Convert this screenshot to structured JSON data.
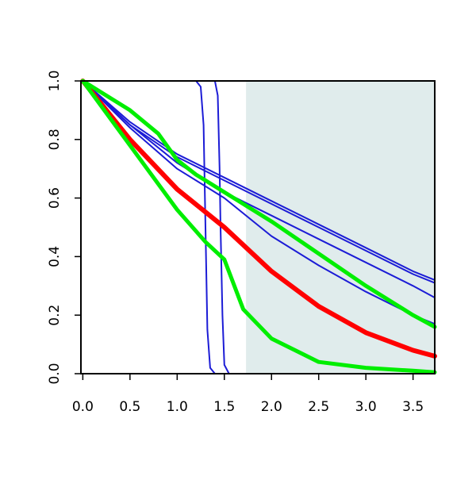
{
  "chart_data": {
    "type": "line",
    "title": "",
    "xlabel": "",
    "ylabel": "",
    "xlim": [
      -0.02,
      3.73
    ],
    "ylim": [
      0.0,
      1.0
    ],
    "x_ticks": [
      "0.0",
      "0.5",
      "1.0",
      "1.5",
      "2.0",
      "2.5",
      "3.0",
      "3.5"
    ],
    "y_ticks": [
      "0.0",
      "0.2",
      "0.4",
      "0.6",
      "0.8",
      "1.0"
    ],
    "grid": false,
    "legend": "none",
    "shaded_region": {
      "x_from": 1.73,
      "x_to": 3.73,
      "color": "#e0ecec"
    },
    "colors": {
      "red": "#ff0000",
      "green": "#00ee00",
      "blue": "#1c1cd6",
      "axis": "#000000"
    },
    "series": [
      {
        "color": "blue",
        "x": [
          0,
          0.5,
          1,
          1.5,
          2,
          2.5,
          3,
          3.5,
          3.73
        ],
        "y": [
          1,
          0.85,
          0.74,
          0.66,
          0.58,
          0.5,
          0.42,
          0.34,
          0.31
        ]
      },
      {
        "color": "blue",
        "x": [
          0,
          0.5,
          1,
          1.5,
          2,
          2.5,
          3,
          3.5,
          3.73
        ],
        "y": [
          1,
          0.86,
          0.75,
          0.67,
          0.59,
          0.51,
          0.43,
          0.35,
          0.32
        ]
      },
      {
        "color": "blue",
        "x": [
          0,
          0.5,
          1,
          1.5,
          2,
          2.5,
          3,
          3.5,
          3.73
        ],
        "y": [
          1,
          0.85,
          0.72,
          0.62,
          0.54,
          0.46,
          0.38,
          0.3,
          0.26
        ]
      },
      {
        "color": "blue",
        "x": [
          0,
          0.5,
          1,
          1.5,
          2,
          2.5,
          3,
          3.5,
          3.73
        ],
        "y": [
          1,
          0.84,
          0.7,
          0.6,
          0.47,
          0.37,
          0.28,
          0.2,
          0.17
        ]
      },
      {
        "color": "blue",
        "x": [
          0,
          1.2,
          1.25,
          1.28,
          1.3,
          1.32,
          1.35,
          1.4,
          1.73,
          3.73
        ],
        "y": [
          1,
          1,
          0.98,
          0.85,
          0.5,
          0.15,
          0.02,
          0,
          0,
          0
        ]
      },
      {
        "color": "blue",
        "x": [
          0,
          1.4,
          1.43,
          1.45,
          1.46,
          1.48,
          1.5,
          1.55,
          1.73,
          3.73
        ],
        "y": [
          1,
          1,
          0.95,
          0.7,
          0.5,
          0.2,
          0.03,
          0,
          0,
          0
        ]
      },
      {
        "color": "red",
        "x": [
          0,
          0.5,
          1,
          1.5,
          2,
          2.5,
          3,
          3.5,
          3.73
        ],
        "y": [
          1,
          0.8,
          0.63,
          0.5,
          0.35,
          0.23,
          0.14,
          0.08,
          0.06
        ]
      },
      {
        "color": "green",
        "x": [
          0,
          0.5,
          0.8,
          1.0,
          1.2,
          1.5,
          2.0,
          2.5,
          3.0,
          3.5,
          3.73
        ],
        "y": [
          1,
          0.9,
          0.82,
          0.73,
          0.68,
          0.62,
          0.52,
          0.41,
          0.3,
          0.2,
          0.16
        ]
      },
      {
        "color": "green",
        "x": [
          0,
          0.5,
          1.0,
          1.3,
          1.5,
          1.7,
          2.0,
          2.5,
          3.0,
          3.5,
          3.73
        ],
        "y": [
          1,
          0.78,
          0.56,
          0.45,
          0.39,
          0.22,
          0.12,
          0.04,
          0.02,
          0.01,
          0.005
        ]
      }
    ]
  }
}
